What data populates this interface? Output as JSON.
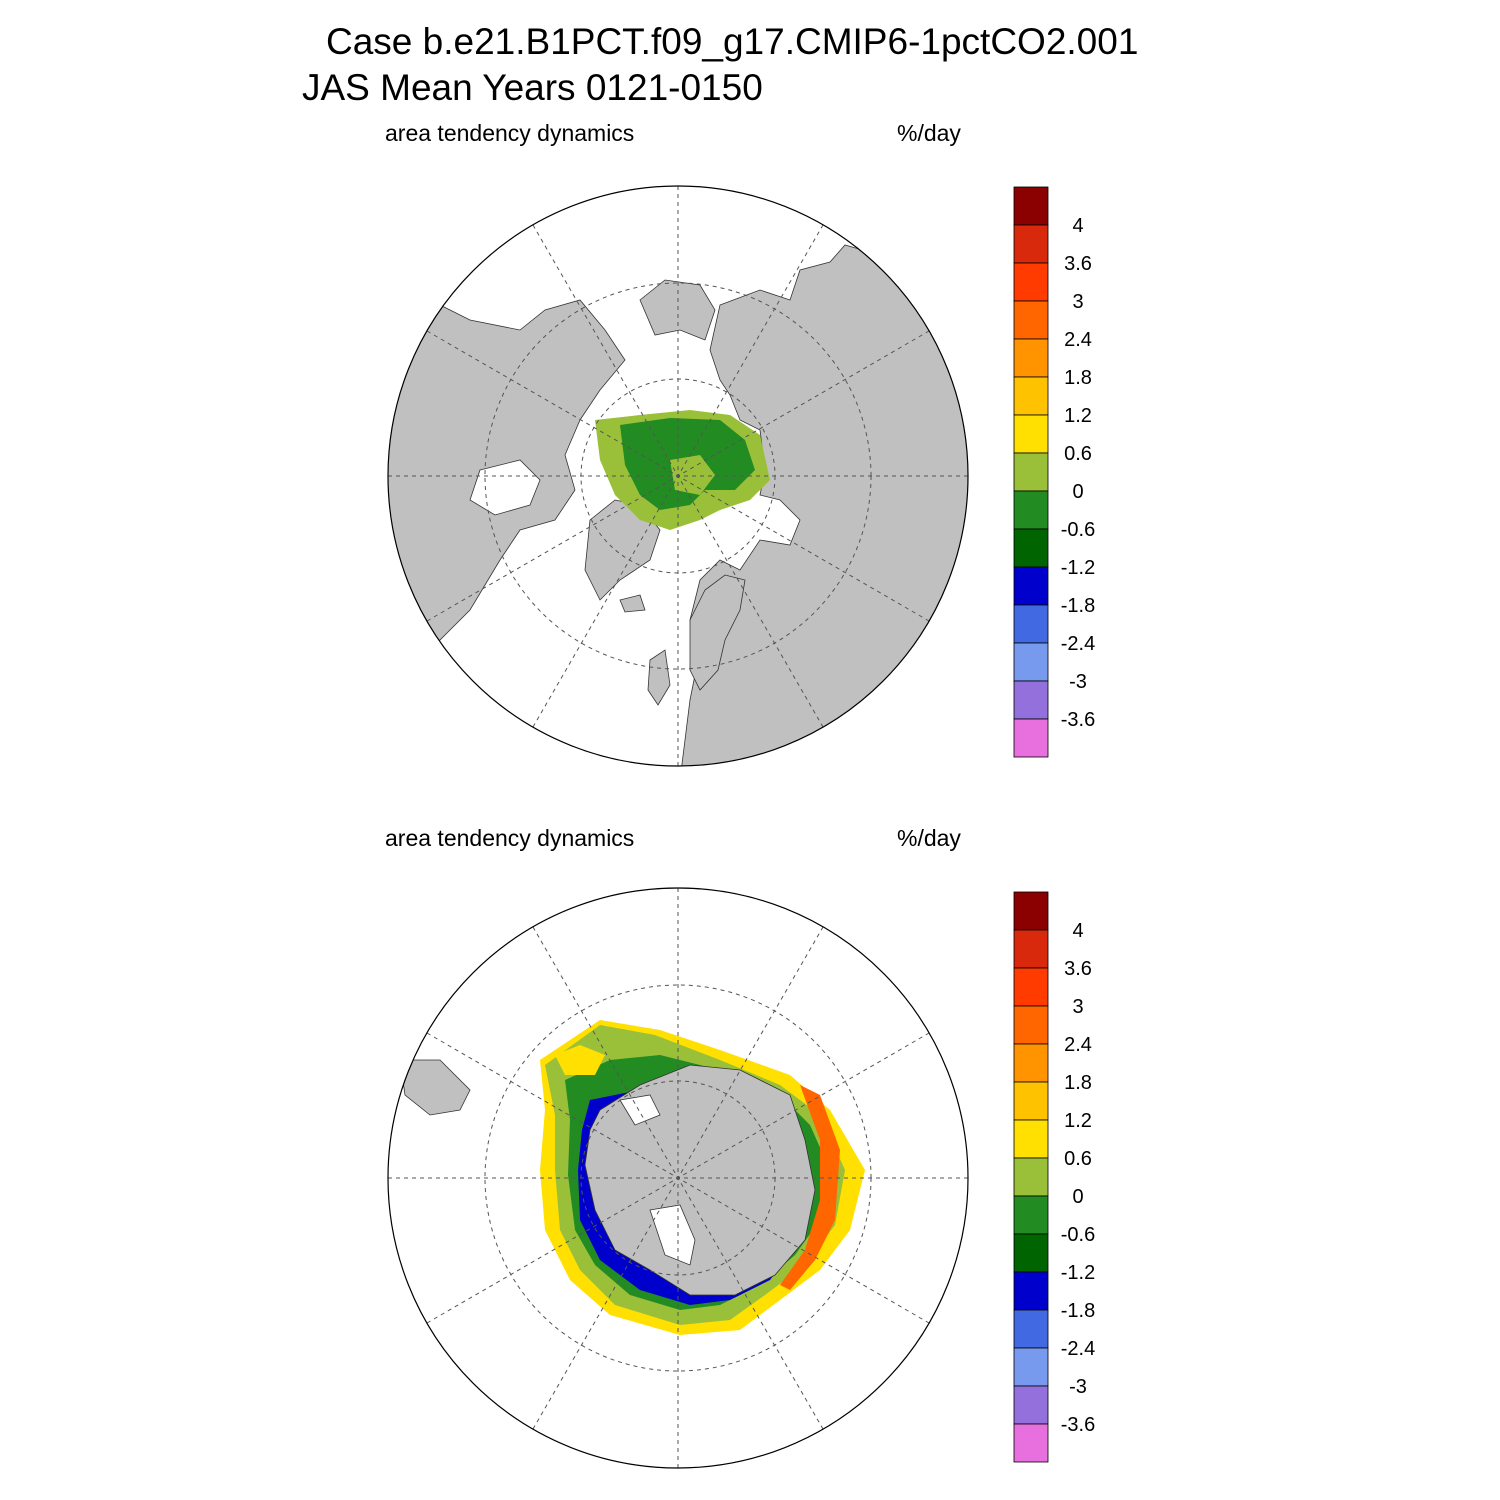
{
  "title": {
    "line1": "Case b.e21.B1PCT.f09_g17.CMIP6-1pctCO2.001",
    "line2": "JAS Mean   Years 0121-0150"
  },
  "panels": [
    {
      "name": "north-polar-panel",
      "hemisphere": "north",
      "variable_label": "area tendency dynamics",
      "units_label": "%/day"
    },
    {
      "name": "south-polar-panel",
      "hemisphere": "south",
      "variable_label": "area tendency dynamics",
      "units_label": "%/day"
    }
  ],
  "colorbar": {
    "labels": [
      "4",
      "3.6",
      "3",
      "2.4",
      "1.8",
      "1.2",
      "0.6",
      "0",
      "-0.6",
      "-1.2",
      "-1.8",
      "-2.4",
      "-3",
      "-3.6"
    ],
    "colors": [
      "#8b0000",
      "#d9290d",
      "#ff3b00",
      "#ff6600",
      "#ff9400",
      "#ffc200",
      "#ffe000",
      "#9ac03a",
      "#228b22",
      "#006400",
      "#0000cd",
      "#4169e1",
      "#7799ee",
      "#9370db",
      "#e86fde"
    ]
  },
  "map_colors": {
    "land": "#c0c0c0",
    "ocean": "#ffffff",
    "grid": "#555555"
  }
}
